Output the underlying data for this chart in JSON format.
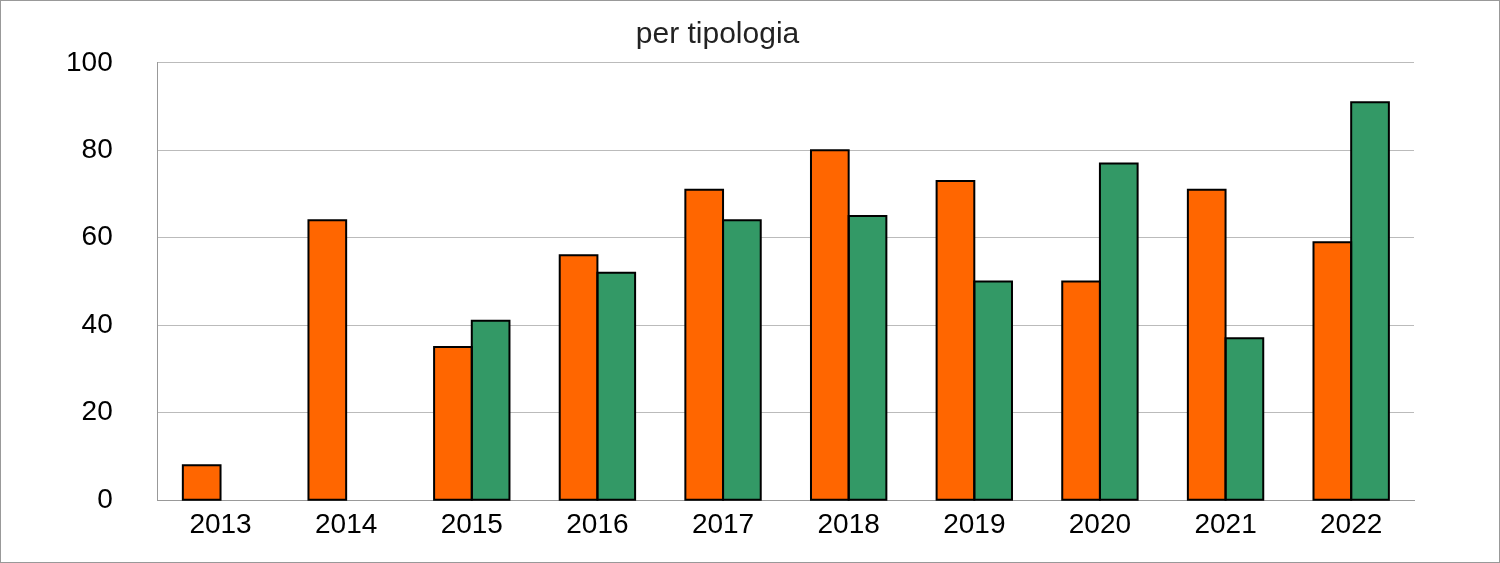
{
  "chart_data": {
    "type": "bar",
    "title": "per tipologia",
    "categories": [
      "2013",
      "2014",
      "2015",
      "2016",
      "2017",
      "2018",
      "2019",
      "2020",
      "2021",
      "2022"
    ],
    "series": [
      {
        "color": "#ff6600",
        "values": [
          8,
          64,
          35,
          56,
          71,
          80,
          73,
          50,
          71,
          59
        ]
      },
      {
        "color": "#339966",
        "values": [
          null,
          null,
          41,
          52,
          64,
          65,
          50,
          77,
          37,
          91
        ]
      }
    ],
    "ylim": [
      0,
      100
    ],
    "yticks": [
      0,
      20,
      40,
      60,
      80,
      100
    ],
    "grid": "y",
    "legend": false
  }
}
